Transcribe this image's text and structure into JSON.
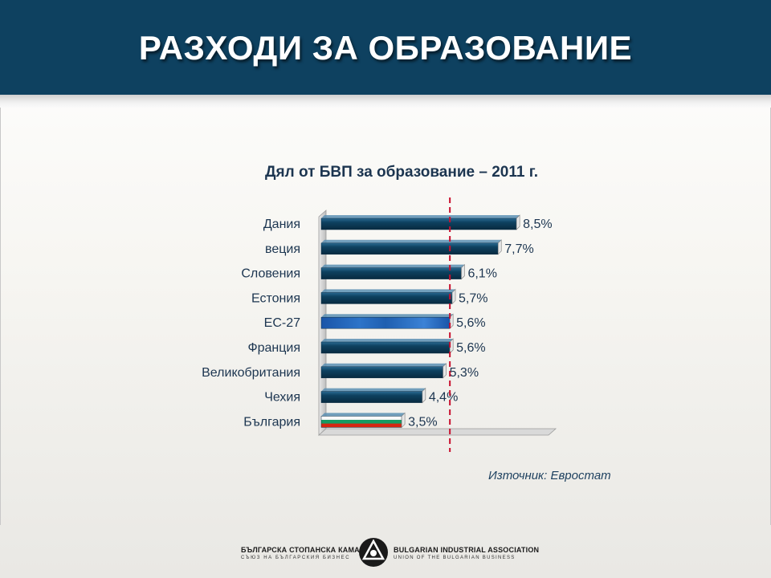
{
  "header": {
    "title": "РАЗХОДИ ЗА ОБРАЗОВАНИЕ"
  },
  "chart_data": {
    "type": "bar",
    "orientation": "horizontal",
    "title": "Дял от БВП за образование – 2011 г.",
    "categories": [
      "Дания",
      "веция",
      "Словения",
      "Естония",
      "ЕС-27",
      "Франция",
      "Великобритания",
      "Чехия",
      "България"
    ],
    "values": [
      8.5,
      7.7,
      6.1,
      5.7,
      5.6,
      5.6,
      5.3,
      4.4,
      3.5
    ],
    "data_labels": [
      "8,5%",
      "7,7%",
      "6,1%",
      "5,7%",
      "5,6%",
      "5,6%",
      "5,3%",
      "4,4%",
      "3,5%"
    ],
    "xlim": [
      0,
      10
    ],
    "reference_line_value": 5.6,
    "reference_line_style": "dashed",
    "grid": false,
    "legend": "none",
    "colors": {
      "bar": "#0e4160",
      "bar_eu": "#1f5fb0",
      "bar_bg_white": "#ffffff",
      "bar_bg_green": "#169b62",
      "bar_bg_red": "#d62612",
      "reference_line": "#c8102e",
      "label": "#1c3550"
    }
  },
  "source": {
    "text": "Източник: Евростат"
  },
  "footer": {
    "org_bg": "БЪЛГАРСКА СТОПАНСКА КАМАРА",
    "org_bg_sub": "СЪЮЗ НА БЪЛГАРСКИЯ БИЗНЕС",
    "org_en": "BULGARIAN INDUSTRIAL ASSOCIATION",
    "org_en_sub": "UNION OF THE BULGARIAN BUSINESS"
  }
}
